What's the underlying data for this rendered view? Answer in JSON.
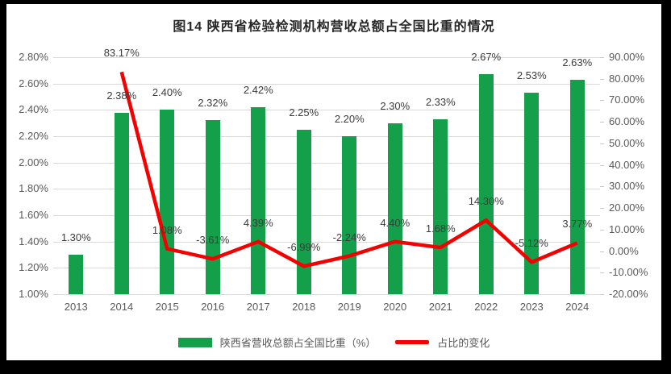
{
  "frame": {
    "background": "#000000",
    "chart_background": "#ffffff"
  },
  "chart_data": {
    "type": "combo",
    "title": "图14  陕西省检验检测机构营收总额占全国比重的情况",
    "categories": [
      "2013",
      "2014",
      "2015",
      "2016",
      "2017",
      "2018",
      "2019",
      "2020",
      "2021",
      "2022",
      "2023",
      "2024"
    ],
    "series": [
      {
        "name": "陕西省营收总额占全国比重（%）",
        "type": "bar",
        "axis": "left",
        "color": "#14A04B",
        "values": [
          1.3,
          2.38,
          2.4,
          2.32,
          2.42,
          2.25,
          2.2,
          2.3,
          2.33,
          2.67,
          2.53,
          2.63
        ],
        "labels": [
          "1.30%",
          "2.38%",
          "2.40%",
          "2.32%",
          "2.42%",
          "2.25%",
          "2.20%",
          "2.30%",
          "2.33%",
          "2.67%",
          "2.53%",
          "2.63%"
        ]
      },
      {
        "name": "占比的变化",
        "type": "line",
        "axis": "right",
        "color": "#F40000",
        "values": [
          null,
          83.17,
          1.08,
          -3.61,
          4.39,
          -6.99,
          -2.24,
          4.4,
          1.68,
          14.3,
          -5.12,
          3.77
        ],
        "labels": [
          null,
          "83.17%",
          "1.08%",
          "-3.61%",
          "4.39%",
          "-6.99%",
          "-2.24%",
          "4.40%",
          "1.68%",
          "14.30%",
          "-5.12%",
          "3.77%"
        ]
      }
    ],
    "left_axis": {
      "min": 1.0,
      "max": 2.8,
      "step": 0.2,
      "ticks": [
        "1.00%",
        "1.20%",
        "1.40%",
        "1.60%",
        "1.80%",
        "2.00%",
        "2.20%",
        "2.40%",
        "2.60%",
        "2.80%"
      ]
    },
    "right_axis": {
      "min": -20,
      "max": 90,
      "step": 10,
      "ticks": [
        "-20.00%",
        "-10.00%",
        "0.00%",
        "10.00%",
        "20.00%",
        "30.00%",
        "40.00%",
        "50.00%",
        "60.00%",
        "70.00%",
        "80.00%",
        "90.00%"
      ]
    },
    "grid": true,
    "legend_position": "bottom",
    "colors": {
      "gridline": "#d9d9d9",
      "axis_text": "#595959",
      "data_label": "#3b3b3b"
    }
  }
}
